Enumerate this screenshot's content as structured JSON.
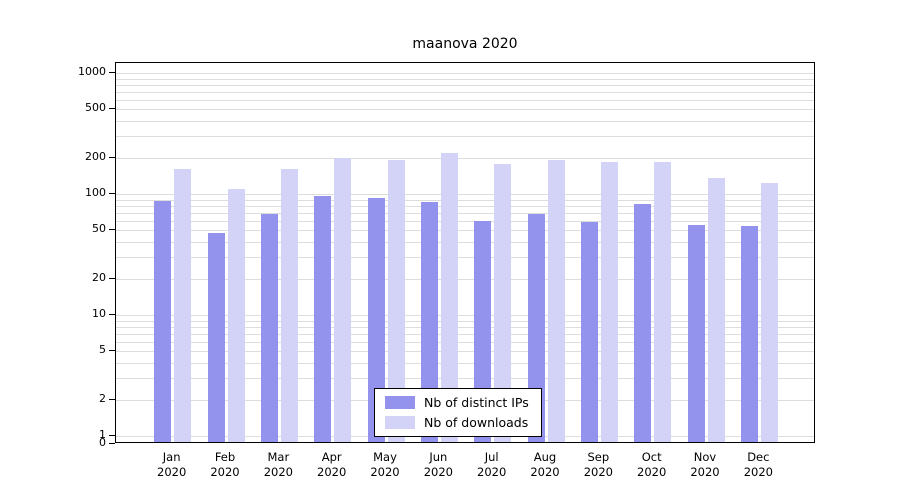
{
  "chart_data": {
    "type": "bar",
    "title": "maanova 2020",
    "scale": "log",
    "grid": true,
    "legend_position": "bottom-center",
    "ylim": [
      0,
      1000
    ],
    "yticks": [
      0,
      1,
      2,
      5,
      10,
      20,
      50,
      100,
      200,
      500,
      1000
    ],
    "categories": [
      "Jan 2020",
      "Feb 2020",
      "Mar 2020",
      "Apr 2020",
      "May 2020",
      "Jun 2020",
      "Jul 2020",
      "Aug 2020",
      "Sep 2020",
      "Oct 2020",
      "Nov 2020",
      "Dec 2020"
    ],
    "series": [
      {
        "name": "Nb of distinct IPs",
        "color": "#9393ee",
        "values": [
          85,
          46,
          66,
          92,
          90,
          83,
          58,
          66,
          56,
          80,
          53,
          52
        ]
      },
      {
        "name": "Nb of downloads",
        "color": "#d3d3f8",
        "values": [
          155,
          105,
          155,
          190,
          185,
          210,
          170,
          185,
          178,
          178,
          130,
          118
        ]
      }
    ],
    "colors": {
      "distinct_ips": "#9393ee",
      "downloads": "#d3d3f8",
      "gridline": "#dddddd",
      "axis": "#000000"
    }
  }
}
